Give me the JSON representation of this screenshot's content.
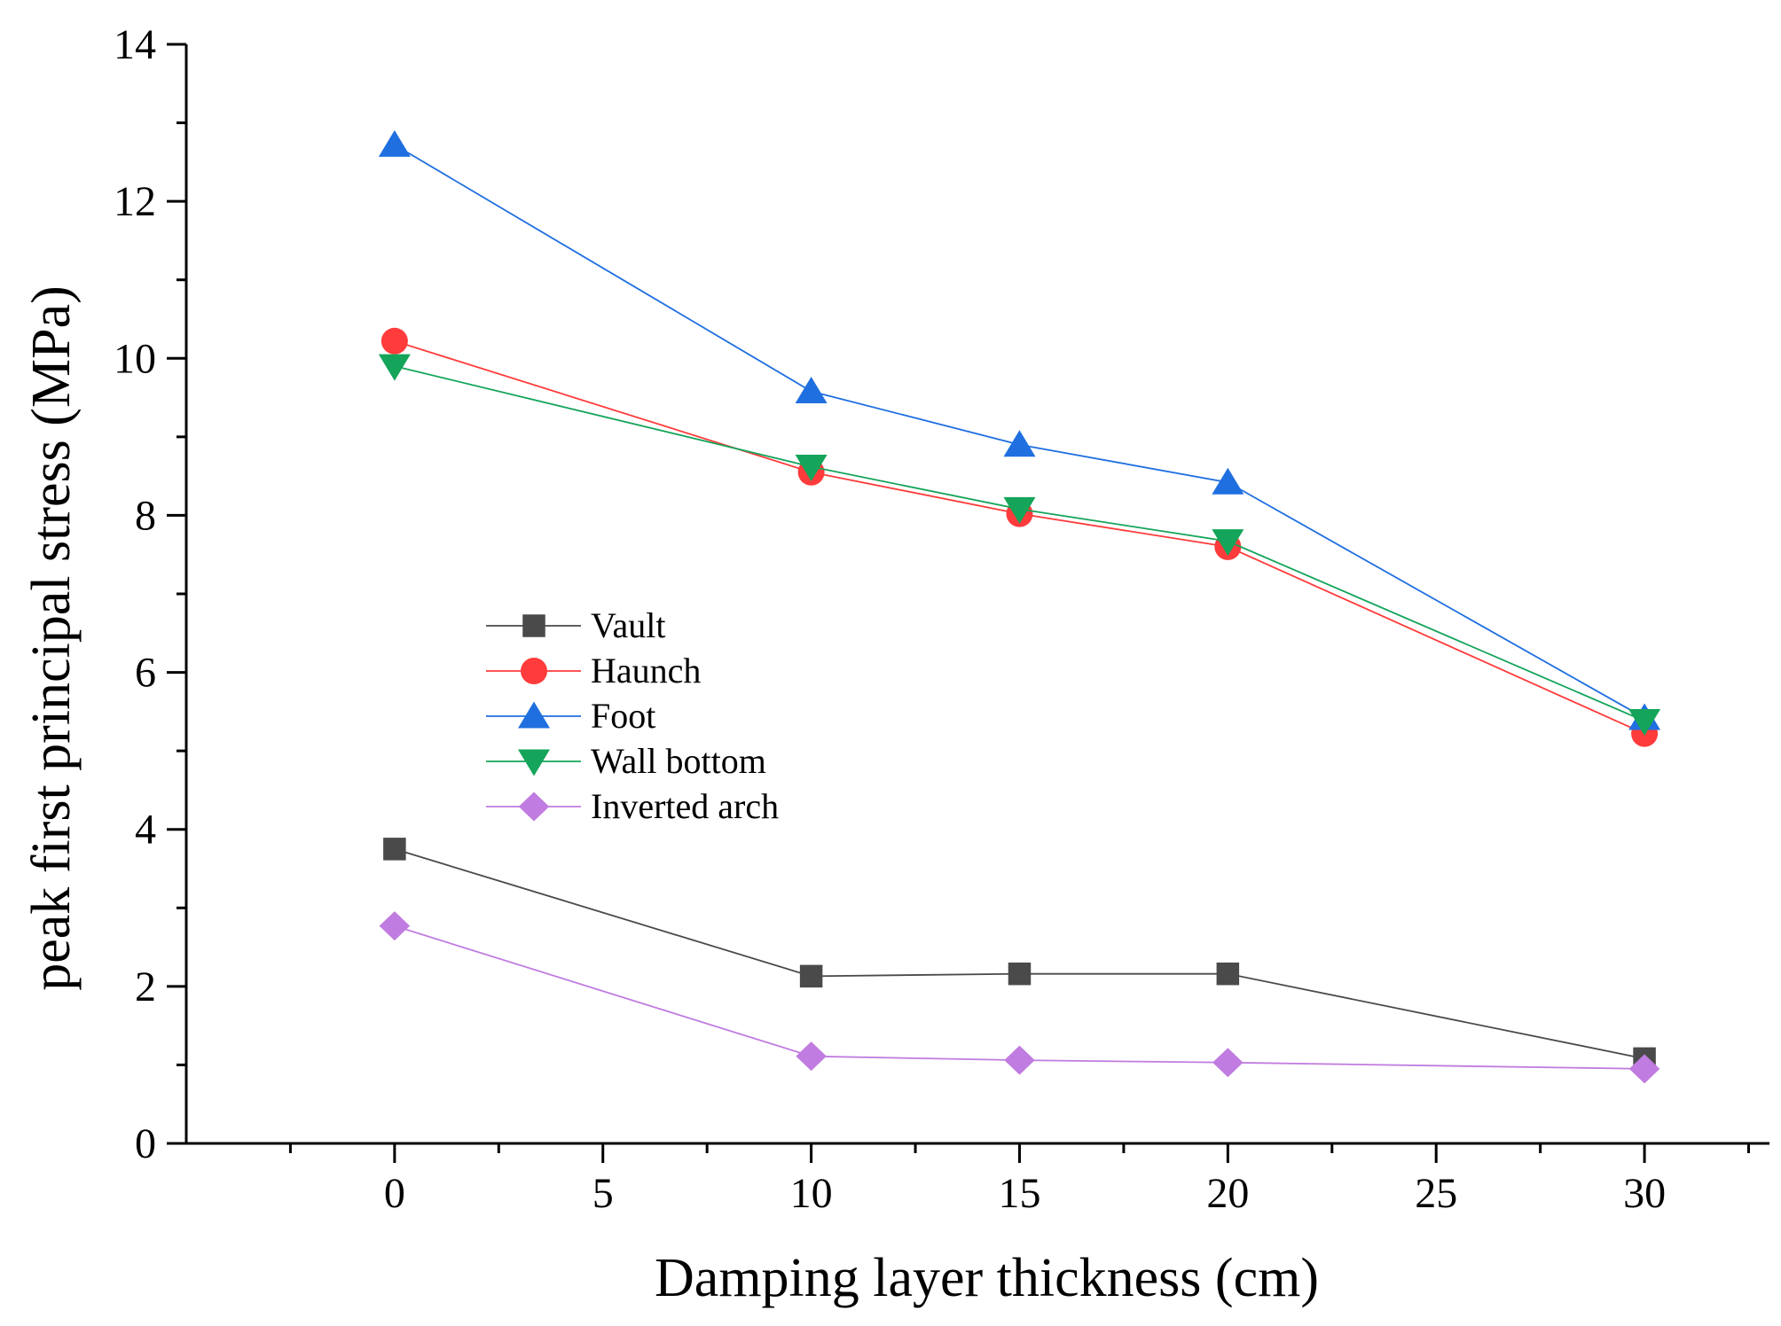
{
  "chart_data": {
    "type": "line",
    "title": "",
    "xlabel": "Damping layer thickness (cm)",
    "ylabel": "peak first principal stress (MPa)",
    "xlim": [
      -5,
      33
    ],
    "ylim": [
      0,
      14
    ],
    "xticks": [
      0,
      5,
      10,
      15,
      20,
      25,
      30
    ],
    "yticks": [
      0,
      2,
      4,
      6,
      8,
      10,
      12,
      14
    ],
    "x": [
      0,
      10,
      15,
      20,
      30
    ],
    "legend_position": "center-left",
    "grid": false,
    "series": [
      {
        "name": "Vault",
        "marker": "square",
        "color": "#4a4a4a",
        "values": [
          3.75,
          2.13,
          2.16,
          2.16,
          1.08
        ]
      },
      {
        "name": "Haunch",
        "marker": "circle",
        "color": "#ff3b3b",
        "values": [
          10.22,
          8.55,
          8.02,
          7.6,
          5.22
        ]
      },
      {
        "name": "Foot",
        "marker": "triangle-up",
        "color": "#1f6fe0",
        "values": [
          12.72,
          9.58,
          8.9,
          8.42,
          5.42
        ]
      },
      {
        "name": "Wall bottom",
        "marker": "triangle-down",
        "color": "#14a45a",
        "values": [
          9.9,
          8.62,
          8.08,
          7.67,
          5.38
        ]
      },
      {
        "name": "Inverted arch",
        "marker": "diamond",
        "color": "#c07ce0",
        "values": [
          2.77,
          1.11,
          1.06,
          1.03,
          0.95
        ]
      }
    ]
  }
}
